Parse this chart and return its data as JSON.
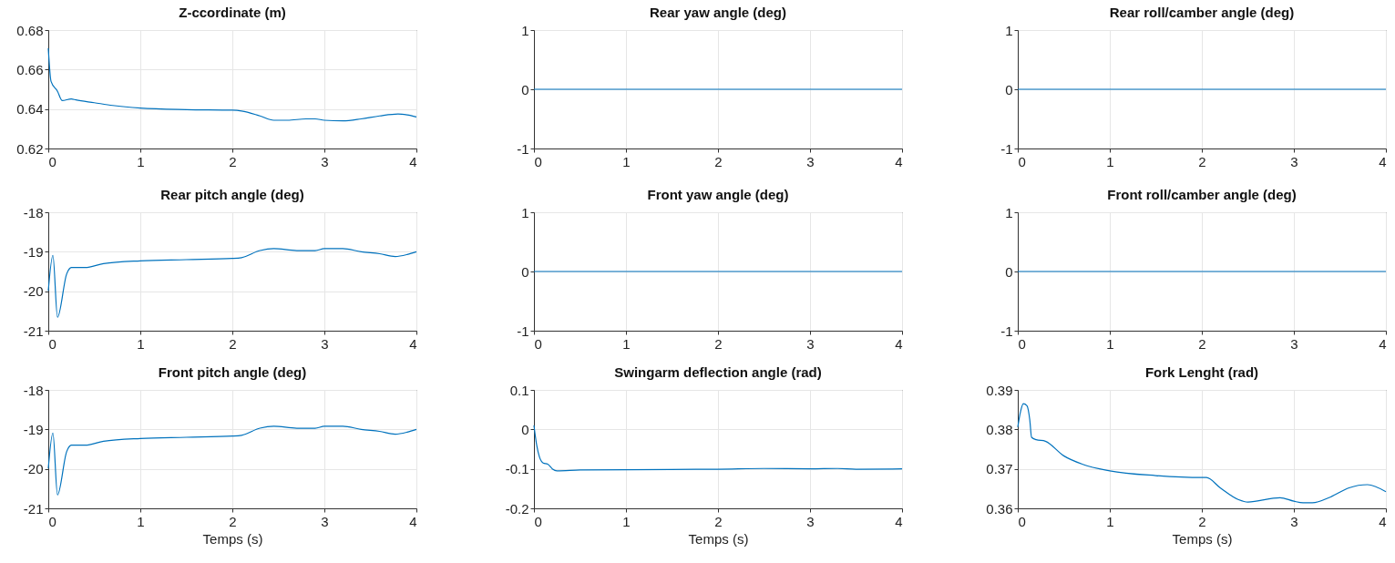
{
  "chart_data": [
    {
      "type": "line",
      "title": "Z-ccordinate (m)",
      "color": "#0072bd",
      "grid": true,
      "xlim": [
        0,
        4
      ],
      "xticks": [
        0,
        1,
        2,
        3,
        4
      ],
      "ylim": [
        0.62,
        0.68
      ],
      "yticks": [
        0.62,
        0.64,
        0.66,
        0.68
      ],
      "x": [
        0,
        0.03,
        0.1,
        0.15,
        0.25,
        0.3,
        0.5,
        0.7,
        1.0,
        1.5,
        2.0,
        2.1,
        2.3,
        2.45,
        2.6,
        2.8,
        2.9,
        3.0,
        3.2,
        3.4,
        3.6,
        3.8,
        3.9,
        4.0
      ],
      "values": [
        0.6708,
        0.654,
        0.649,
        0.6443,
        0.6451,
        0.6446,
        0.6432,
        0.6418,
        0.6405,
        0.6397,
        0.6394,
        0.639,
        0.6365,
        0.6343,
        0.6343,
        0.635,
        0.635,
        0.6343,
        0.634,
        0.635,
        0.6365,
        0.6375,
        0.637,
        0.636
      ]
    },
    {
      "type": "line",
      "title": "Rear yaw angle (deg)",
      "color": "#0072bd",
      "grid": true,
      "xlim": [
        0,
        4
      ],
      "xticks": [
        0,
        1,
        2,
        3,
        4
      ],
      "ylim": [
        -1,
        1
      ],
      "yticks": [
        -1,
        0,
        1
      ],
      "x": [
        0,
        4
      ],
      "values": [
        0,
        0
      ]
    },
    {
      "type": "line",
      "title": "Rear roll/camber angle (deg)",
      "color": "#0072bd",
      "grid": true,
      "xlim": [
        0,
        4
      ],
      "xticks": [
        0,
        1,
        2,
        3,
        4
      ],
      "ylim": [
        -1,
        1
      ],
      "yticks": [
        -1,
        0,
        1
      ],
      "x": [
        0,
        4
      ],
      "values": [
        0,
        0
      ]
    },
    {
      "type": "line",
      "title": "Rear pitch angle (deg)",
      "color": "#0072bd",
      "grid": true,
      "xlim": [
        0,
        4
      ],
      "xticks": [
        0,
        1,
        2,
        3,
        4
      ],
      "ylim": [
        -21,
        -18
      ],
      "yticks": [
        -21,
        -20,
        -19,
        -18
      ],
      "x": [
        0,
        0.05,
        0.1,
        0.2,
        0.25,
        0.4,
        0.6,
        1.0,
        1.5,
        2.0,
        2.1,
        2.3,
        2.45,
        2.7,
        2.9,
        3.0,
        3.2,
        3.4,
        3.6,
        3.77,
        3.9,
        4.0
      ],
      "values": [
        -19.99,
        -19.09,
        -20.66,
        -19.56,
        -19.4,
        -19.4,
        -19.3,
        -19.23,
        -19.2,
        -19.17,
        -19.15,
        -18.97,
        -18.92,
        -18.97,
        -18.97,
        -18.92,
        -18.92,
        -19.0,
        -19.05,
        -19.12,
        -19.07,
        -19.0
      ]
    },
    {
      "type": "line",
      "title": "Front yaw angle (deg)",
      "color": "#0072bd",
      "grid": true,
      "xlim": [
        0,
        4
      ],
      "xticks": [
        0,
        1,
        2,
        3,
        4
      ],
      "ylim": [
        -1,
        1
      ],
      "yticks": [
        -1,
        0,
        1
      ],
      "x": [
        0,
        4
      ],
      "values": [
        0,
        0
      ]
    },
    {
      "type": "line",
      "title": "Front roll/camber angle (deg)",
      "color": "#0072bd",
      "grid": true,
      "xlim": [
        0,
        4
      ],
      "xticks": [
        0,
        1,
        2,
        3,
        4
      ],
      "ylim": [
        -1,
        1
      ],
      "yticks": [
        -1,
        0,
        1
      ],
      "x": [
        0,
        4
      ],
      "values": [
        0,
        0
      ]
    },
    {
      "type": "line",
      "title": "Front pitch angle (deg)",
      "xlabel": "Temps (s)",
      "color": "#0072bd",
      "grid": true,
      "xlim": [
        0,
        4
      ],
      "xticks": [
        0,
        1,
        2,
        3,
        4
      ],
      "ylim": [
        -21,
        -18
      ],
      "yticks": [
        -21,
        -20,
        -19,
        -18
      ],
      "x": [
        0,
        0.05,
        0.1,
        0.2,
        0.25,
        0.4,
        0.6,
        1.0,
        1.5,
        2.0,
        2.1,
        2.3,
        2.45,
        2.7,
        2.9,
        3.0,
        3.2,
        3.4,
        3.6,
        3.77,
        3.9,
        4.0
      ],
      "values": [
        -19.99,
        -19.09,
        -20.66,
        -19.56,
        -19.4,
        -19.4,
        -19.3,
        -19.23,
        -19.2,
        -19.17,
        -19.15,
        -18.97,
        -18.92,
        -18.97,
        -18.97,
        -18.92,
        -18.92,
        -19.0,
        -19.05,
        -19.12,
        -19.07,
        -19.0
      ]
    },
    {
      "type": "line",
      "title": "Swingarm deflection angle (rad)",
      "xlabel": "Temps (s)",
      "color": "#0072bd",
      "grid": true,
      "xlim": [
        0,
        4
      ],
      "xticks": [
        0,
        1,
        2,
        3,
        4
      ],
      "ylim": [
        -0.2,
        0.1
      ],
      "yticks": [
        -0.2,
        -0.1,
        0,
        0.1
      ],
      "x": [
        0,
        0.03,
        0.06,
        0.1,
        0.15,
        0.2,
        0.25,
        0.5,
        1.0,
        2.0,
        2.5,
        3.0,
        3.3,
        3.5,
        4.0
      ],
      "values": [
        0.01,
        -0.04,
        -0.07,
        -0.085,
        -0.088,
        -0.1,
        -0.105,
        -0.103,
        -0.102,
        -0.101,
        -0.099,
        -0.1,
        -0.099,
        -0.101,
        -0.1
      ]
    },
    {
      "type": "line",
      "title": "Fork Lenght (rad)",
      "xlabel": "Temps (s)",
      "color": "#0072bd",
      "grid": true,
      "xlim": [
        0,
        4
      ],
      "xticks": [
        0,
        1,
        2,
        3,
        4
      ],
      "ylim": [
        0.36,
        0.39
      ],
      "yticks": [
        0.36,
        0.37,
        0.38,
        0.39
      ],
      "x": [
        0,
        0.03,
        0.06,
        0.1,
        0.13,
        0.15,
        0.2,
        0.3,
        0.5,
        0.7,
        1.0,
        1.5,
        2.0,
        2.05,
        2.2,
        2.4,
        2.5,
        2.85,
        3.0,
        3.1,
        3.2,
        3.4,
        3.6,
        3.8,
        4.0
      ],
      "values": [
        0.3806,
        0.3845,
        0.3865,
        0.386,
        0.3825,
        0.378,
        0.3774,
        0.377,
        0.3733,
        0.3712,
        0.3695,
        0.3683,
        0.3678,
        0.3678,
        0.3652,
        0.3622,
        0.3616,
        0.3627,
        0.3618,
        0.3614,
        0.3614,
        0.3629,
        0.3652,
        0.366,
        0.3642
      ]
    }
  ]
}
